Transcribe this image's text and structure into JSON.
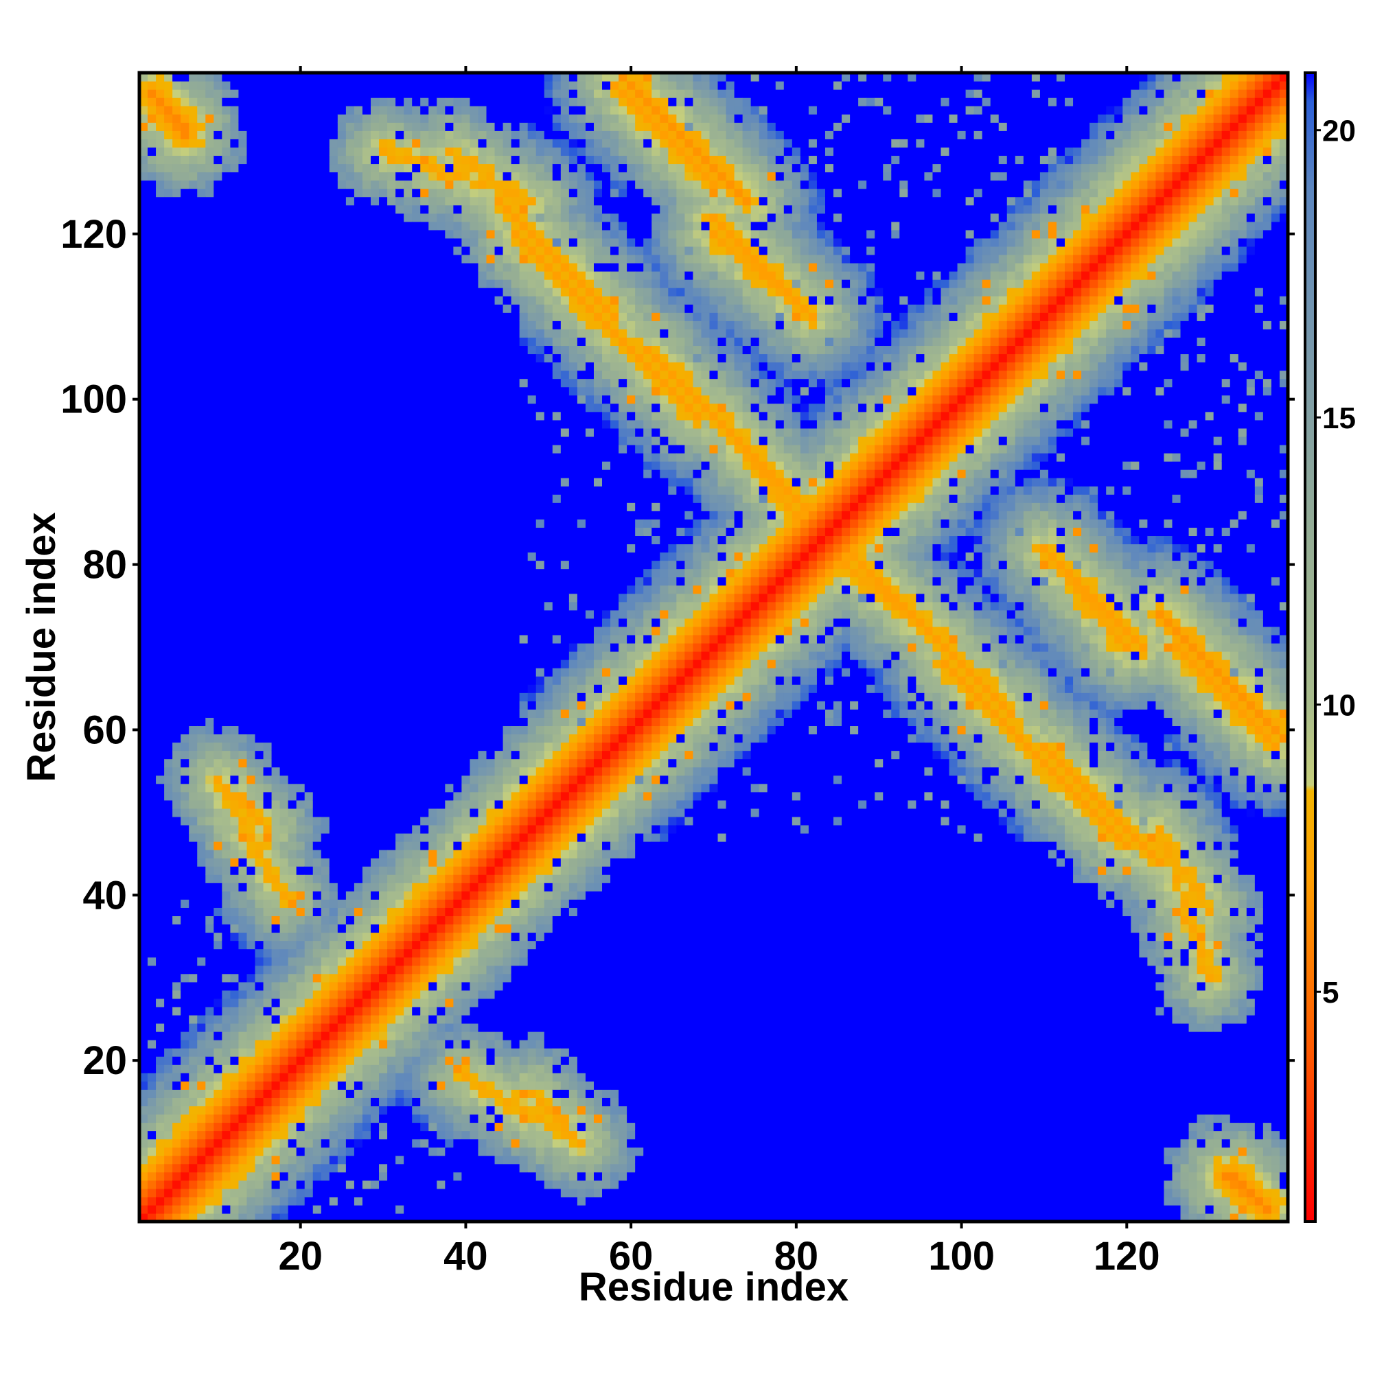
{
  "chart_data": {
    "type": "heatmap",
    "xlabel": "Residue index",
    "ylabel": "Residue index",
    "xlim": [
      1,
      139
    ],
    "ylim": [
      1,
      139
    ],
    "x_ticks": [
      20,
      40,
      60,
      80,
      100,
      120
    ],
    "y_ticks": [
      20,
      40,
      60,
      80,
      100,
      120
    ],
    "colorbar": {
      "min": 1,
      "max": 21,
      "ticks": [
        5,
        10,
        15,
        20
      ],
      "stops": [
        {
          "value": 1,
          "color": "#ff0000"
        },
        {
          "value": 4,
          "color": "#ff5a00"
        },
        {
          "value": 7,
          "color": "#ff9f00"
        },
        {
          "value": 8.5,
          "color": "#f2b400"
        },
        {
          "value": 8.6,
          "color": "#c6cf7c"
        },
        {
          "value": 10,
          "color": "#a9bd8c"
        },
        {
          "value": 13,
          "color": "#94ad95"
        },
        {
          "value": 16,
          "color": "#7a9aaa"
        },
        {
          "value": 19,
          "color": "#5c86bf"
        },
        {
          "value": 20.5,
          "color": "#2c5fd8"
        },
        {
          "value": 21,
          "color": "#0000ff"
        }
      ]
    },
    "matrix_size": 139,
    "description_of_values": "pairwise residue distance; diagonal = minimum distance, far pairs saturate at 21",
    "contact_bands": [
      {
        "x": [
          1,
          139
        ],
        "y": [
          1,
          139
        ],
        "value": 1.5
      },
      {
        "x": [
          60,
          74
        ],
        "y": [
          138,
          124
        ],
        "value": 6.5
      },
      {
        "x": [
          44,
          58
        ],
        "y": [
          124,
          110
        ],
        "value": 7
      },
      {
        "x": [
          70,
          82
        ],
        "y": [
          120,
          110
        ],
        "value": 7
      },
      {
        "x": [
          62,
          72
        ],
        "y": [
          106,
          96
        ],
        "value": 7
      },
      {
        "x": [
          72,
          84
        ],
        "y": [
          96,
          84
        ],
        "value": 7
      },
      {
        "x": [
          30,
          48
        ],
        "y": [
          130,
          124
        ],
        "value": 7.5
      },
      {
        "x": [
          86,
          96
        ],
        "y": [
          80,
          72
        ],
        "value": 7
      },
      {
        "x": [
          98,
          108
        ],
        "y": [
          68,
          58
        ],
        "value": 7
      },
      {
        "x": [
          108,
          120
        ],
        "y": [
          58,
          46
        ],
        "value": 7
      },
      {
        "x": [
          112,
          122
        ],
        "y": [
          80,
          70
        ],
        "value": 7
      },
      {
        "x": [
          126,
          138
        ],
        "y": [
          70,
          58
        ],
        "value": 7
      },
      {
        "x": [
          125,
          130
        ],
        "y": [
          46,
          38
        ],
        "value": 7.5
      },
      {
        "x": [
          10,
          16
        ],
        "y": [
          54,
          48
        ],
        "value": 7.5
      },
      {
        "x": [
          40,
          54
        ],
        "y": [
          18,
          10
        ],
        "value": 7.5
      },
      {
        "x": [
          2,
          6
        ],
        "y": [
          137,
          132
        ],
        "value": 6
      },
      {
        "x": [
          133,
          137
        ],
        "y": [
          6,
          2
        ],
        "value": 6
      }
    ],
    "far_blocks": [
      {
        "x": [
          60,
          70
        ],
        "y": [
          120,
          132
        ],
        "value": 21
      },
      {
        "x": [
          40,
          140
        ],
        "y": [
          1,
          46
        ],
        "value": 21
      },
      {
        "x": [
          10,
          40
        ],
        "y": [
          66,
          110
        ],
        "value": 21
      }
    ]
  }
}
